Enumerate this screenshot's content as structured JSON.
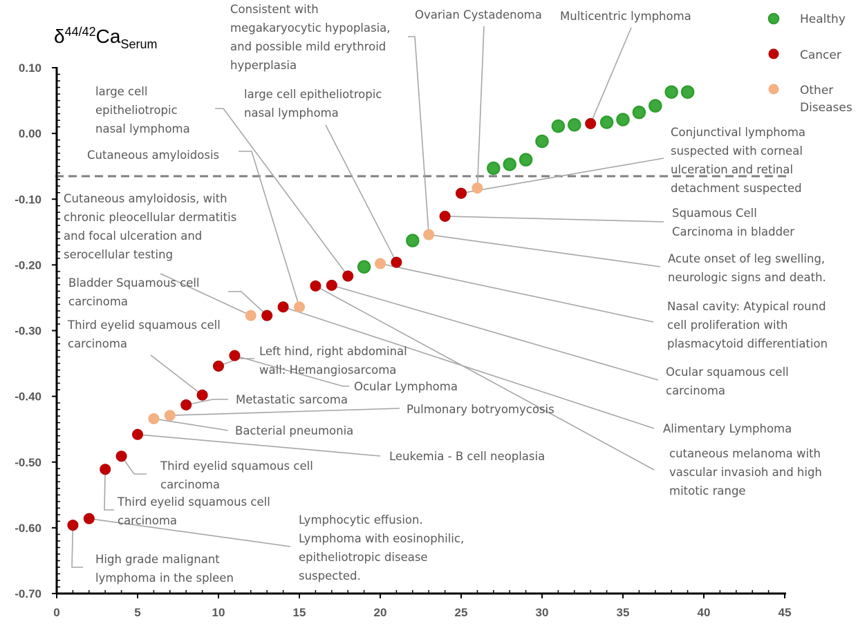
{
  "chart_data": {
    "type": "scatter",
    "ylabel": {
      "base": "δ",
      "sup": "44/42",
      "main": "Ca",
      "sub": "Serum"
    },
    "xlim": [
      0,
      45
    ],
    "ylim": [
      -0.7,
      0.1
    ],
    "x_ticks": [
      "0",
      "5",
      "10",
      "15",
      "20",
      "25",
      "30",
      "35",
      "40",
      "45"
    ],
    "y_ticks": [
      "0.10",
      "0.00",
      "-0.10",
      "-0.20",
      "-0.30",
      "-0.40",
      "-0.50",
      "-0.60",
      "-0.70"
    ],
    "reference_line_y": -0.065,
    "legend": [
      {
        "label": "Healthy",
        "color": "#3daa3d"
      },
      {
        "label": "Cancer",
        "color": "#c00000"
      },
      {
        "label": "Other Diseases",
        "color": "#f4b183"
      }
    ],
    "series": [
      {
        "name": "Healthy",
        "color": "#3daa3d",
        "points": [
          [
            19,
            -0.203
          ],
          [
            22,
            -0.163
          ],
          [
            27,
            -0.053
          ],
          [
            28,
            -0.047
          ],
          [
            29,
            -0.04
          ],
          [
            30,
            -0.012
          ],
          [
            31,
            0.011
          ],
          [
            32,
            0.013
          ],
          [
            34,
            0.017
          ],
          [
            35,
            0.021
          ],
          [
            36,
            0.032
          ],
          [
            37,
            0.042
          ],
          [
            38,
            0.063
          ],
          [
            39,
            0.063
          ]
        ]
      },
      {
        "name": "Cancer",
        "color": "#c00000",
        "points": [
          [
            1,
            -0.596
          ],
          [
            2,
            -0.586
          ],
          [
            3,
            -0.511
          ],
          [
            4,
            -0.491
          ],
          [
            5,
            -0.458
          ],
          [
            8,
            -0.413
          ],
          [
            9,
            -0.398
          ],
          [
            10,
            -0.354
          ],
          [
            11,
            -0.338
          ],
          [
            13,
            -0.277
          ],
          [
            14,
            -0.264
          ],
          [
            16,
            -0.232
          ],
          [
            17,
            -0.231
          ],
          [
            18,
            -0.217
          ],
          [
            21,
            -0.196
          ],
          [
            24,
            -0.126
          ],
          [
            25,
            -0.091
          ],
          [
            33,
            0.015
          ]
        ]
      },
      {
        "name": "Other Diseases",
        "color": "#f4b183",
        "points": [
          [
            6,
            -0.434
          ],
          [
            7,
            -0.429
          ],
          [
            12,
            -0.277
          ],
          [
            15,
            -0.264
          ],
          [
            20,
            -0.198
          ],
          [
            23,
            -0.154
          ],
          [
            26,
            -0.083
          ]
        ]
      }
    ],
    "annotations": [
      {
        "text": [
          "High grade malignant",
          "lymphoma in the spleen"
        ],
        "x": 1,
        "y": -0.596
      },
      {
        "text": [
          "Lymphocytic effusion.",
          "Lymphoma with eosinophilic,",
          "epitheliotropic disease",
          "suspected."
        ],
        "x": 2,
        "y": -0.586
      },
      {
        "text": [
          "Third eyelid squamous cell",
          "carcinoma"
        ],
        "x": 3,
        "y": -0.511
      },
      {
        "text": [
          "Third eyelid squamous cell",
          "carcinoma"
        ],
        "x": 4,
        "y": -0.491
      },
      {
        "text": [
          "Leukemia - B cell neoplasia"
        ],
        "x": 5,
        "y": -0.458
      },
      {
        "text": [
          "Bacterial pneumonia"
        ],
        "x": 6,
        "y": -0.434
      },
      {
        "text": [
          "Pulmonary botryomycosis"
        ],
        "x": 7,
        "y": -0.429
      },
      {
        "text": [
          "Metastatic sarcoma"
        ],
        "x": 8,
        "y": -0.413
      },
      {
        "text": [
          "Third eyelid squamous cell",
          "carcinoma"
        ],
        "x": 9,
        "y": -0.398
      },
      {
        "text": [
          "Left hind, right abdominal",
          "wall: Hemangiosarcoma"
        ],
        "x": 10,
        "y": -0.354
      },
      {
        "text": [
          "Ocular Lymphoma"
        ],
        "x": 11,
        "y": -0.338
      },
      {
        "text": [
          "Cutaneous amyloidosis, with",
          "chronic pleocellular dermatitis",
          "and focal ulceration and",
          "serocellular testing"
        ],
        "x": 12,
        "y": -0.277
      },
      {
        "text": [
          "Bladder Squamous cell",
          "carcinoma"
        ],
        "x": 13,
        "y": -0.277
      },
      {
        "text": [
          "Alimentary Lymphoma"
        ],
        "x": 14,
        "y": -0.264
      },
      {
        "text": [
          "Cutaneous amyloidosis"
        ],
        "x": 15,
        "y": -0.264
      },
      {
        "text": [
          "cutaneous melanoma with",
          "vascular invasioh and high",
          "mitotic range"
        ],
        "x": 16,
        "y": -0.232
      },
      {
        "text": [
          "Ocular squamous cell",
          "carcinoma"
        ],
        "x": 17,
        "y": -0.231
      },
      {
        "text": [
          "large cell",
          "epitheliotropic",
          "nasal lymphoma"
        ],
        "x": 18,
        "y": -0.217
      },
      {
        "text": [
          "Nasal cavity: Atypical round",
          "cell proliferation with",
          "plasmacytoid differentiation"
        ],
        "x": 20,
        "y": -0.198
      },
      {
        "text": [
          "large cell epitheliotropic",
          "nasal lymphoma"
        ],
        "x": 21,
        "y": -0.196
      },
      {
        "text": [
          "Acute onset of leg swelling,",
          "neurologic signs and death."
        ],
        "x": 23,
        "y": -0.154
      },
      {
        "text": [
          "Consistent with",
          "megakaryocytic hypoplasia,",
          "and possible mild erythroid",
          "hyperplasia"
        ],
        "x": 23,
        "y": -0.154
      },
      {
        "text": [
          "Squamous Cell",
          "Carcinoma in bladder"
        ],
        "x": 24,
        "y": -0.126
      },
      {
        "text": [
          "Conjunctival lymphoma",
          "suspected with corneal",
          "ulceration and retinal",
          "detachment suspected"
        ],
        "x": 25,
        "y": -0.091
      },
      {
        "text": [
          "Ovarian Cystadenoma"
        ],
        "x": 26,
        "y": -0.083
      },
      {
        "text": [
          "Multicentric lymphoma"
        ],
        "x": 33,
        "y": 0.015
      }
    ]
  }
}
